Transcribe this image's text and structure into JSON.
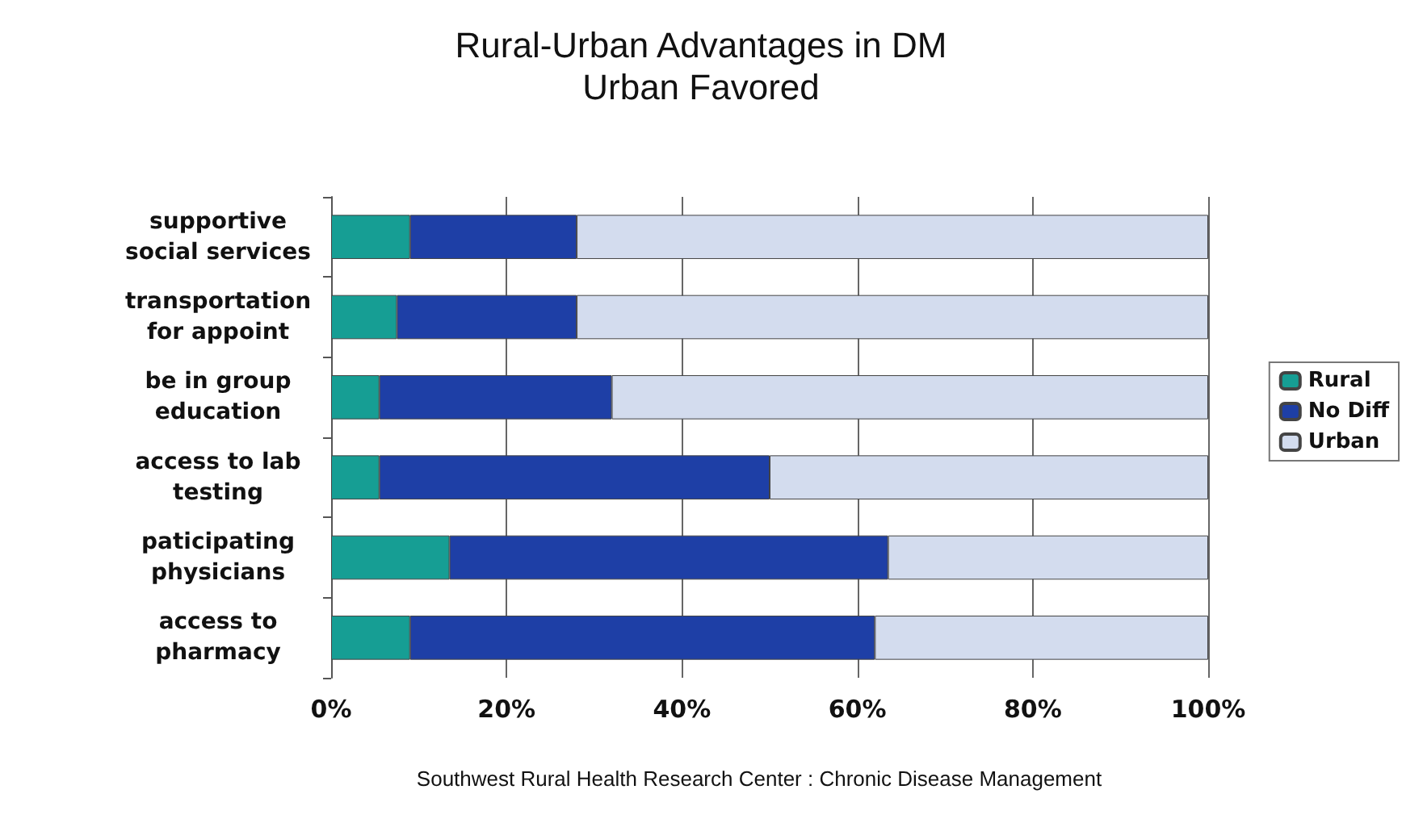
{
  "chart_data": {
    "type": "bar",
    "orientation": "horizontal",
    "stacked": true,
    "title": "Rural-Urban Advantages in DM",
    "subtitle": "Urban Favored",
    "categories": [
      "supportive\nsocial services",
      "transportation\nfor appoint",
      "be in group\neducation",
      "access to lab\ntesting",
      "paticipating\nphysicians",
      "access to\npharmacy"
    ],
    "series": [
      {
        "name": "Rural",
        "color": "#169e94",
        "values": [
          9,
          7.5,
          5.5,
          5.5,
          13.5,
          9
        ]
      },
      {
        "name": "No Diff",
        "color": "#1e3fa6",
        "values": [
          19,
          20.5,
          26.5,
          44.5,
          50,
          53
        ]
      },
      {
        "name": "Urban",
        "color": "#d3dcee",
        "values": [
          72,
          72,
          68,
          50,
          36.5,
          38
        ]
      }
    ],
    "xlim": [
      0,
      100
    ],
    "xticks": [
      {
        "value": 0,
        "label": "0%"
      },
      {
        "value": 20,
        "label": "20%"
      },
      {
        "value": 40,
        "label": "40%"
      },
      {
        "value": 60,
        "label": "60%"
      },
      {
        "value": 80,
        "label": "80%"
      },
      {
        "value": 100,
        "label": "100%"
      }
    ],
    "grid": "x",
    "legend": "right",
    "annotations": [
      "Southwest Rural Health Research Center : Chronic Disease Management"
    ]
  }
}
